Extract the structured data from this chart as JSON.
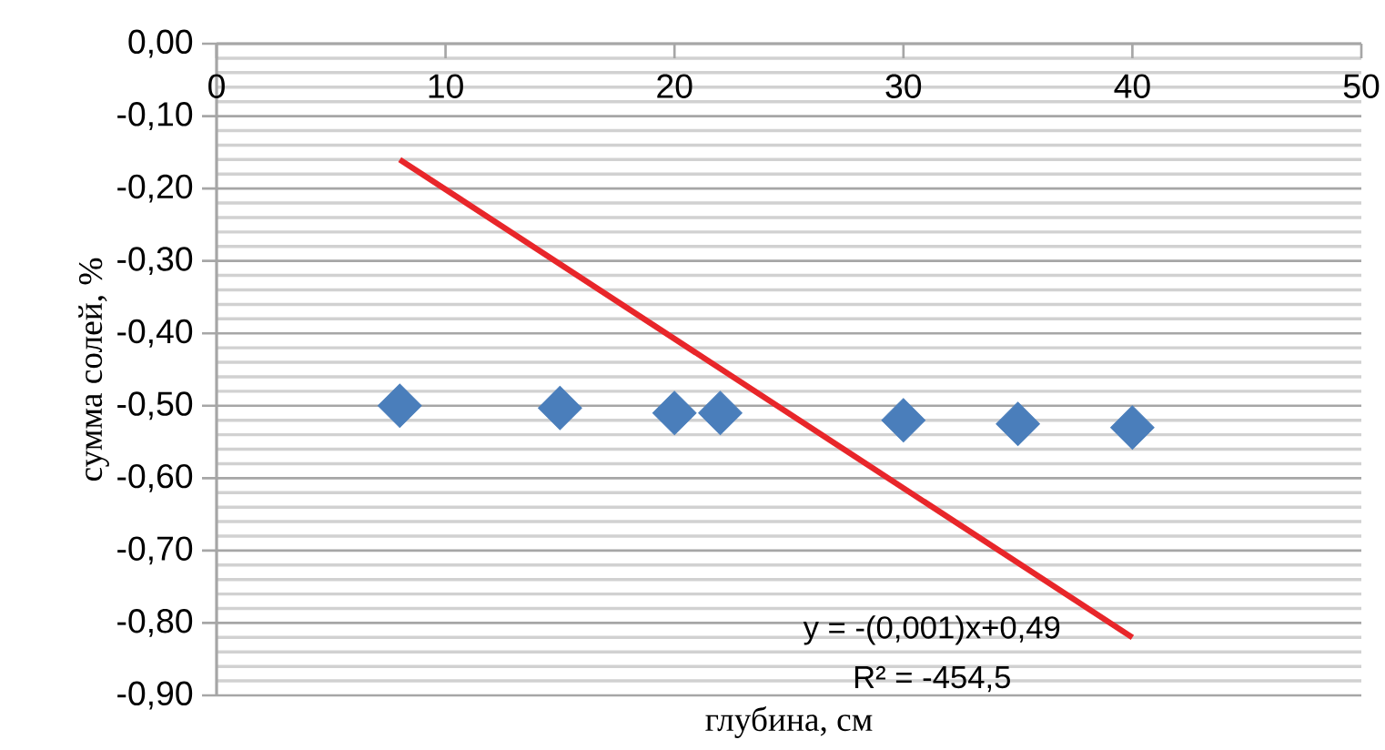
{
  "chart_data": {
    "type": "scatter",
    "xlabel": "глубина, см",
    "ylabel": "сумма солей, %",
    "xlim": [
      0,
      50
    ],
    "xticks": [
      0,
      10,
      20,
      30,
      40,
      50
    ],
    "ylim": [
      -0.9,
      0
    ],
    "yticks": [
      {
        "value": 0,
        "label": "0,00"
      },
      {
        "value": -0.1,
        "label": "-0,10"
      },
      {
        "value": -0.2,
        "label": "-0,20"
      },
      {
        "value": -0.3,
        "label": "-0,30"
      },
      {
        "value": -0.4,
        "label": "-0,40"
      },
      {
        "value": -0.5,
        "label": "-0,50"
      },
      {
        "value": -0.6,
        "label": "-0,60"
      },
      {
        "value": -0.7,
        "label": "-0,70"
      },
      {
        "value": -0.8,
        "label": "-0,80"
      },
      {
        "value": -0.9,
        "label": "-0,90"
      }
    ],
    "grid": "y",
    "series": [
      {
        "marker": "diamond",
        "color": "#4a7ebb",
        "x": [
          8,
          15,
          20,
          22,
          30,
          35,
          40
        ],
        "values": [
          -0.5,
          -0.503,
          -0.51,
          -0.51,
          -0.52,
          -0.525,
          -0.53
        ]
      },
      {
        "type": "line",
        "color": "#e8262a",
        "x": [
          8,
          40
        ],
        "values": [
          -0.16,
          -0.82
        ]
      }
    ],
    "annotations": [
      "y = -(0,001)x+0,49",
      "R² = -454,5"
    ]
  }
}
